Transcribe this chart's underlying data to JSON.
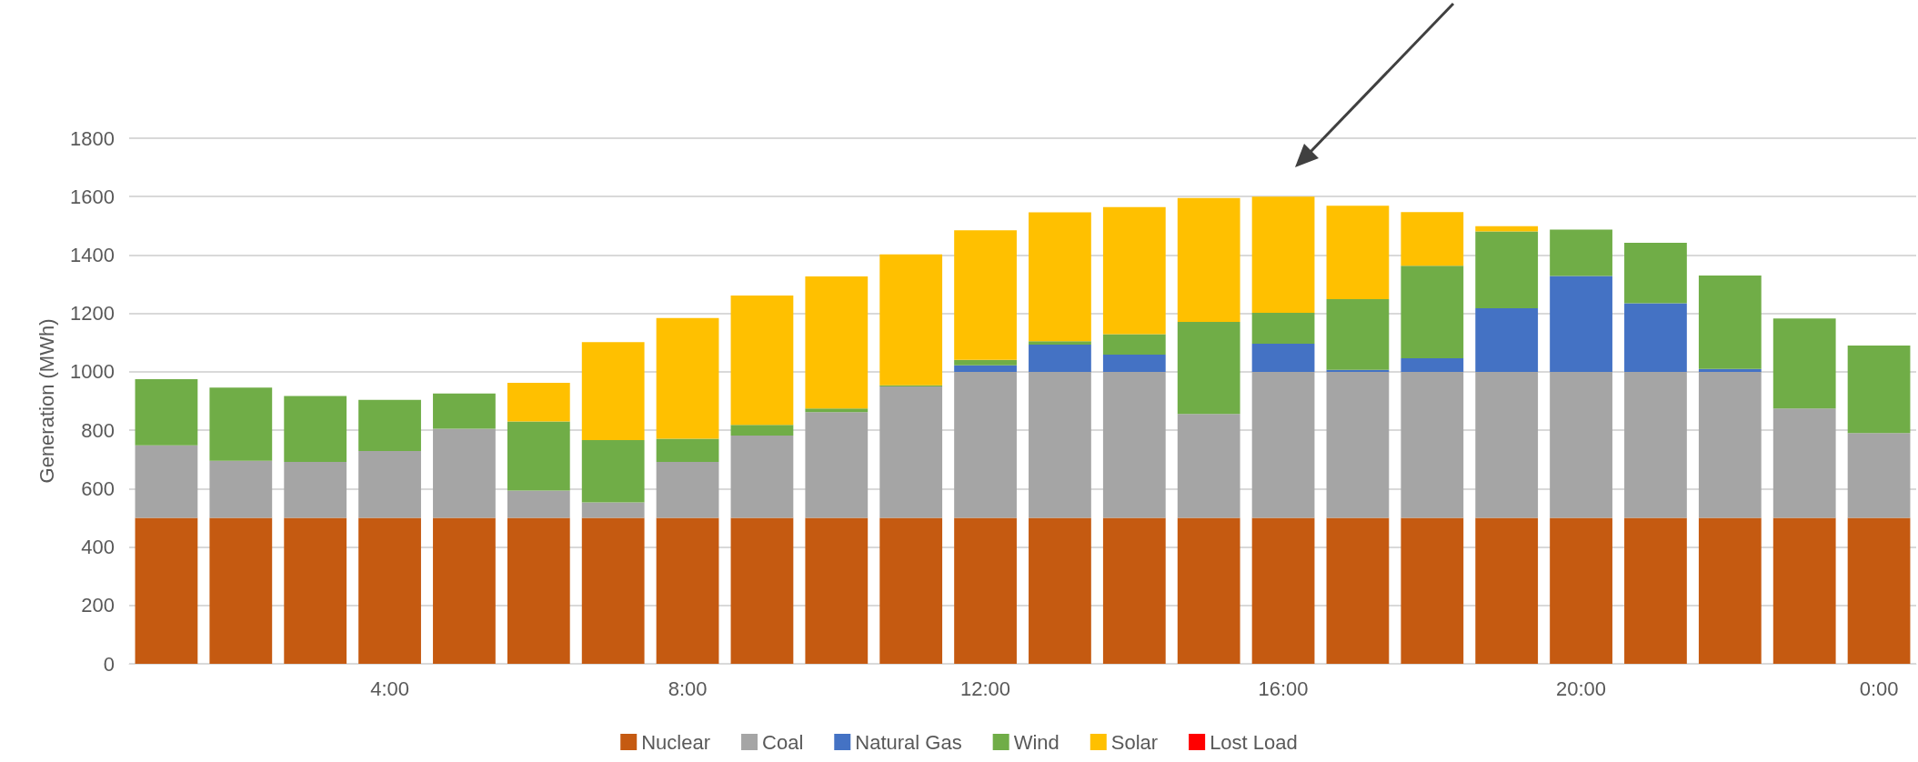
{
  "chart_data": {
    "type": "bar",
    "stacked": true,
    "ylabel": "Generation (MWh)",
    "categories": [
      null,
      null,
      null,
      "4:00",
      null,
      null,
      null,
      "8:00",
      null,
      null,
      null,
      "12:00",
      null,
      null,
      null,
      "16:00",
      null,
      null,
      null,
      "20:00",
      null,
      null,
      null,
      "0:00"
    ],
    "series": [
      {
        "name": "Nuclear",
        "color": "#c55a11",
        "values": [
          500,
          500,
          500,
          500,
          500,
          500,
          500,
          500,
          500,
          500,
          500,
          500,
          500,
          500,
          500,
          500,
          500,
          500,
          500,
          500,
          500,
          500,
          500,
          500
        ]
      },
      {
        "name": "Coal",
        "color": "#a5a5a5",
        "values": [
          248,
          195,
          191,
          229,
          305,
          93,
          53,
          191,
          282,
          362,
          450,
          500,
          500,
          500,
          356,
          500,
          500,
          500,
          500,
          500,
          500,
          500,
          374,
          290
        ]
      },
      {
        "name": "Natural Gas",
        "color": "#4472c4",
        "values": [
          0,
          0,
          0,
          0,
          0,
          0,
          0,
          0,
          0,
          0,
          0,
          22,
          93,
          59,
          0,
          96,
          7,
          46,
          218,
          328,
          235,
          10,
          0,
          0
        ]
      },
      {
        "name": "Wind",
        "color": "#70ad47",
        "values": [
          227,
          251,
          226,
          175,
          121,
          237,
          213,
          80,
          36,
          12,
          4,
          19,
          12,
          70,
          315,
          106,
          242,
          317,
          263,
          159,
          207,
          320,
          309,
          300
        ]
      },
      {
        "name": "Solar",
        "color": "#ffc000",
        "values": [
          0,
          0,
          0,
          0,
          0,
          132,
          336,
          413,
          443,
          453,
          448,
          444,
          441,
          435,
          424,
          398,
          320,
          184,
          18,
          0,
          0,
          0,
          0,
          0
        ]
      },
      {
        "name": "Lost Load",
        "color": "#ff0000",
        "values": [
          0,
          0,
          0,
          0,
          0,
          0,
          0,
          0,
          0,
          0,
          0,
          0,
          0,
          0,
          0,
          0,
          0,
          0,
          0,
          0,
          0,
          0,
          0,
          0
        ]
      }
    ],
    "ylim": [
      0,
      1800
    ],
    "yticks": [
      0,
      200,
      400,
      600,
      800,
      1000,
      1200,
      1400,
      1600,
      1800
    ],
    "grid": "y",
    "legend": "bottom"
  }
}
